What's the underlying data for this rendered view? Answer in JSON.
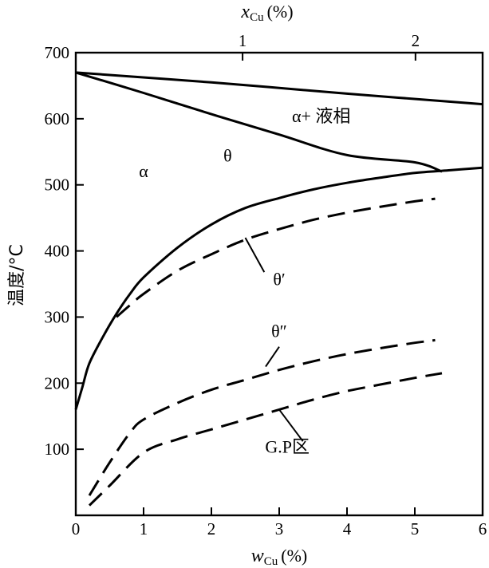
{
  "chart_data": {
    "type": "line",
    "title": "",
    "xlabel": {
      "main": "w",
      "sub": "Cu",
      "unit": "(%)"
    },
    "x2label": {
      "main": "x",
      "sub": "Cu",
      "unit": "(%)"
    },
    "ylabel": "温度/°C",
    "xlim": [
      0,
      6
    ],
    "ylim": [
      0,
      700
    ],
    "x_ticks": [
      0,
      1,
      2,
      3,
      4,
      5,
      6
    ],
    "y_ticks": [
      100,
      200,
      300,
      400,
      500,
      600,
      700
    ],
    "x2_ticks": [
      {
        "label": "1",
        "at_wcu": 2.46
      },
      {
        "label": "2",
        "at_wcu": 5.01
      }
    ],
    "grid": false,
    "legend": "none",
    "series": [
      {
        "key": "liquidus",
        "style": "solid",
        "x": [
          0,
          2,
          4,
          6
        ],
        "y": [
          670,
          655,
          638,
          622
        ]
      },
      {
        "key": "solidus",
        "style": "solid",
        "x": [
          0,
          1,
          2,
          3,
          4,
          5,
          5.4
        ],
        "y": [
          670,
          639,
          607,
          576,
          545,
          534,
          520
        ]
      },
      {
        "key": "theta",
        "style": "solid",
        "x": [
          0,
          0.1,
          0.2,
          0.4,
          0.6,
          0.8,
          1,
          1.5,
          2,
          2.5,
          3,
          3.5,
          4,
          4.5,
          5,
          5.5,
          6
        ],
        "y": [
          160,
          195,
          230,
          270,
          305,
          335,
          360,
          405,
          440,
          465,
          480,
          493,
          503,
          511,
          518,
          522,
          526
        ]
      },
      {
        "key": "theta_prime",
        "style": "dashed",
        "x": [
          0.6,
          0.8,
          1,
          1.5,
          2,
          2.5,
          3,
          3.5,
          4,
          4.5,
          5,
          5.3
        ],
        "y": [
          300,
          318,
          335,
          370,
          395,
          417,
          433,
          447,
          458,
          467,
          475,
          479
        ]
      },
      {
        "key": "theta_double_prime",
        "style": "dashed",
        "x": [
          0.2,
          0.5,
          0.8,
          1,
          1.5,
          2,
          2.5,
          3,
          3.5,
          4,
          4.5,
          5,
          5.3
        ],
        "y": [
          30,
          80,
          125,
          145,
          170,
          190,
          205,
          220,
          233,
          244,
          253,
          261,
          265
        ]
      },
      {
        "key": "gp_zone",
        "style": "dashed",
        "x": [
          0.2,
          0.5,
          1,
          1.5,
          2,
          2.5,
          3,
          3.5,
          4,
          4.5,
          5,
          5.4
        ],
        "y": [
          15,
          45,
          95,
          115,
          130,
          145,
          160,
          175,
          188,
          198,
          208,
          215
        ]
      }
    ],
    "annotations": [
      {
        "text": "α+ 液相",
        "x": 3.62,
        "y": 595,
        "leader": null
      },
      {
        "text": "α",
        "x": 1.0,
        "y": 512,
        "leader": null
      },
      {
        "text": "θ",
        "x": 2.24,
        "y": 535,
        "leader": null
      },
      {
        "text": "θ′",
        "x": 3.0,
        "y": 348,
        "leader": {
          "from_x": 2.5,
          "from_y": 420,
          "to_x": 2.78,
          "to_y": 368
        }
      },
      {
        "text": "θ″",
        "x": 3.0,
        "y": 270,
        "leader": {
          "from_x": 3.0,
          "from_y": 255,
          "to_x": 2.8,
          "to_y": 225
        }
      },
      {
        "text": "G.P区",
        "x": 3.12,
        "y": 95,
        "leader": {
          "from_x": 3.35,
          "from_y": 112,
          "to_x": 3.0,
          "to_y": 160
        }
      }
    ]
  }
}
